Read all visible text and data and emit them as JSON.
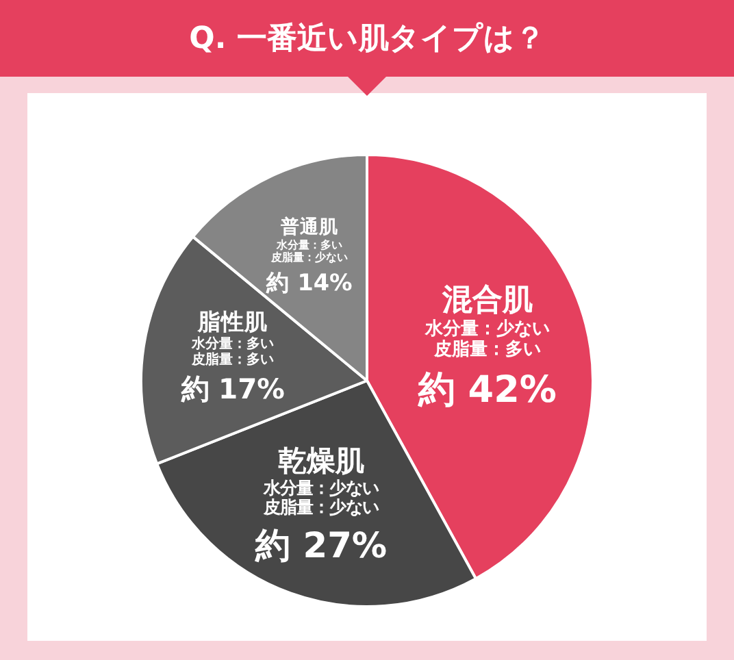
{
  "chart_data": {
    "type": "pie",
    "title": "Q. 一番近い肌タイプは？",
    "categories": [
      "混合肌",
      "乾燥肌",
      "脂性肌",
      "普通肌"
    ],
    "values": [
      42,
      27,
      17,
      14
    ],
    "colors": [
      "#e5405e",
      "#474747",
      "#5c5c5c",
      "#858585"
    ],
    "value_labels": [
      "約 42%",
      "約 27%",
      "約 17%",
      "約 14%"
    ],
    "annotations": [
      "水分量：少ない",
      "皮脂量：多い",
      "水分量：少ない",
      "皮脂量：少ない",
      "水分量：多い",
      "皮脂量：多い",
      "水分量：多い",
      "皮脂量：少ない"
    ],
    "legend": false
  }
}
